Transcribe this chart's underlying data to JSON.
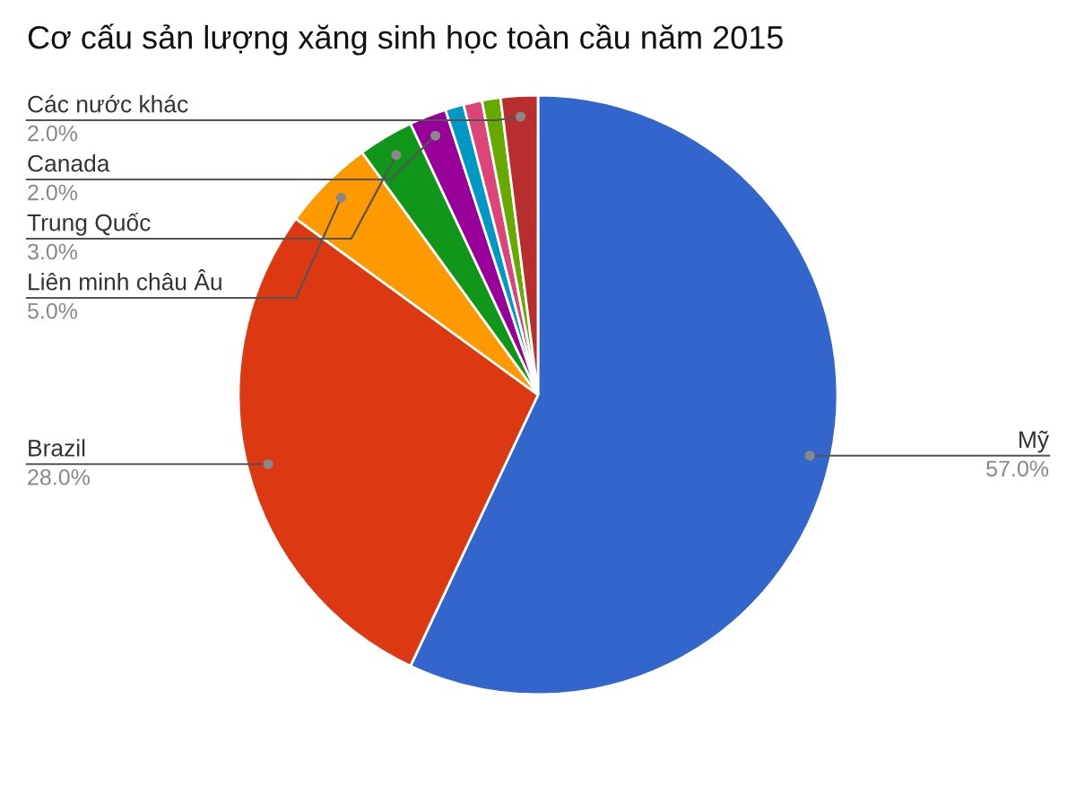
{
  "chart_data": {
    "type": "pie",
    "title": "Cơ cấu sản lượng xăng sinh học toàn cầu năm 2015",
    "categories": [
      "Mỹ",
      "Brazil",
      "Liên minh châu Âu",
      "Trung Quốc",
      "Canada",
      null,
      null,
      null,
      "Các nước khác"
    ],
    "values": [
      57,
      28,
      5,
      3,
      2,
      1,
      1,
      1,
      2
    ],
    "value_labels": [
      "57.0%",
      "28.0%",
      "5.0%",
      "3.0%",
      "2.0%",
      null,
      null,
      null,
      "2.0%"
    ],
    "colors": [
      "#3366cc",
      "#dc3912",
      "#ff9900",
      "#109618",
      "#990099",
      "#0099c6",
      "#dd4477",
      "#66aa00",
      "#b82e2e"
    ],
    "legend": false
  }
}
